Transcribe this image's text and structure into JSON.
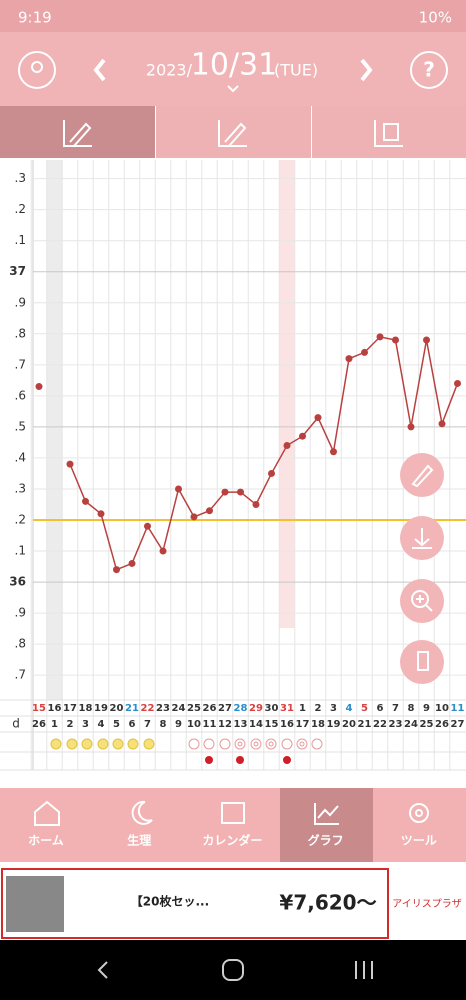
{
  "status_bar": {
    "time": "9:19",
    "battery": "10%"
  },
  "header": {
    "year": "2023/",
    "date": "10/31",
    "weekday": "(TUE)",
    "help": "?"
  },
  "chart_data": {
    "type": "line",
    "x": [
      "15",
      "16",
      "17",
      "18",
      "19",
      "20",
      "21",
      "22",
      "23",
      "24",
      "25",
      "26",
      "27",
      "28",
      "29",
      "30",
      "31",
      "1",
      "2",
      "3",
      "4",
      "5",
      "6",
      "7",
      "8",
      "9",
      "10",
      "11"
    ],
    "category_colors": [
      "#d9413f",
      "#333",
      "#333",
      "#333",
      "#333",
      "#333",
      "#2a8fc9",
      "#d9413f",
      "#333",
      "#333",
      "#333",
      "#333",
      "#333",
      "#2a8fc9",
      "#d9413f",
      "#333",
      "#d9413f",
      "#333",
      "#333",
      "#333",
      "#2a8fc9",
      "#d9413f",
      "#333",
      "#333",
      "#333",
      "#333",
      "#333",
      "#2a8fc9"
    ],
    "cycle_label": "d",
    "cycle_days": [
      "26",
      "1",
      "2",
      "3",
      "4",
      "5",
      "6",
      "7",
      "8",
      "9",
      "10",
      "11",
      "12",
      "13",
      "14",
      "15",
      "16",
      "17",
      "18",
      "19",
      "20",
      "21",
      "22",
      "23",
      "24",
      "25",
      "26",
      "27"
    ],
    "series": [
      {
        "name": "temperature",
        "color": "#b8413f",
        "values": [
          36.63,
          null,
          36.38,
          36.26,
          36.22,
          36.04,
          36.06,
          36.18,
          36.1,
          36.3,
          36.21,
          36.23,
          36.29,
          36.29,
          36.25,
          36.35,
          36.44,
          36.47,
          36.53,
          36.42,
          36.72,
          36.74,
          36.79,
          36.78,
          36.5,
          36.78,
          36.51,
          36.64
        ]
      }
    ],
    "reference_line": {
      "value": 36.2,
      "color": "#f2c12e"
    },
    "ylim": [
      35.62,
      37.36
    ],
    "yticks": [
      {
        "value": 37.3,
        "label": ".3"
      },
      {
        "value": 37.2,
        "label": ".2"
      },
      {
        "value": 37.1,
        "label": ".1"
      },
      37,
      {
        "value": 36.9,
        "label": ".9"
      },
      {
        "value": 36.8,
        "label": ".8"
      },
      {
        "value": 36.7,
        "label": ".7"
      },
      {
        "value": 36.6,
        "label": ".6"
      },
      {
        "value": 36.5,
        "label": ".5"
      },
      {
        "value": 36.4,
        "label": ".4"
      },
      {
        "value": 36.3,
        "label": ".3"
      },
      {
        "value": 36.2,
        "label": ".2"
      },
      {
        "value": 36.1,
        "label": ".1"
      },
      36,
      {
        "value": 35.9,
        "label": ".9"
      },
      {
        "value": 35.8,
        "label": ".8"
      },
      {
        "value": 35.7,
        "label": ".7"
      }
    ],
    "grid": true
  },
  "nav": [
    "ホーム",
    "生理",
    "カレンダー",
    "グラフ",
    "ツール"
  ],
  "ad": {
    "title": "【20枚セッ...",
    "price": "¥7,620〜",
    "brand": "アイリスプラザ"
  }
}
